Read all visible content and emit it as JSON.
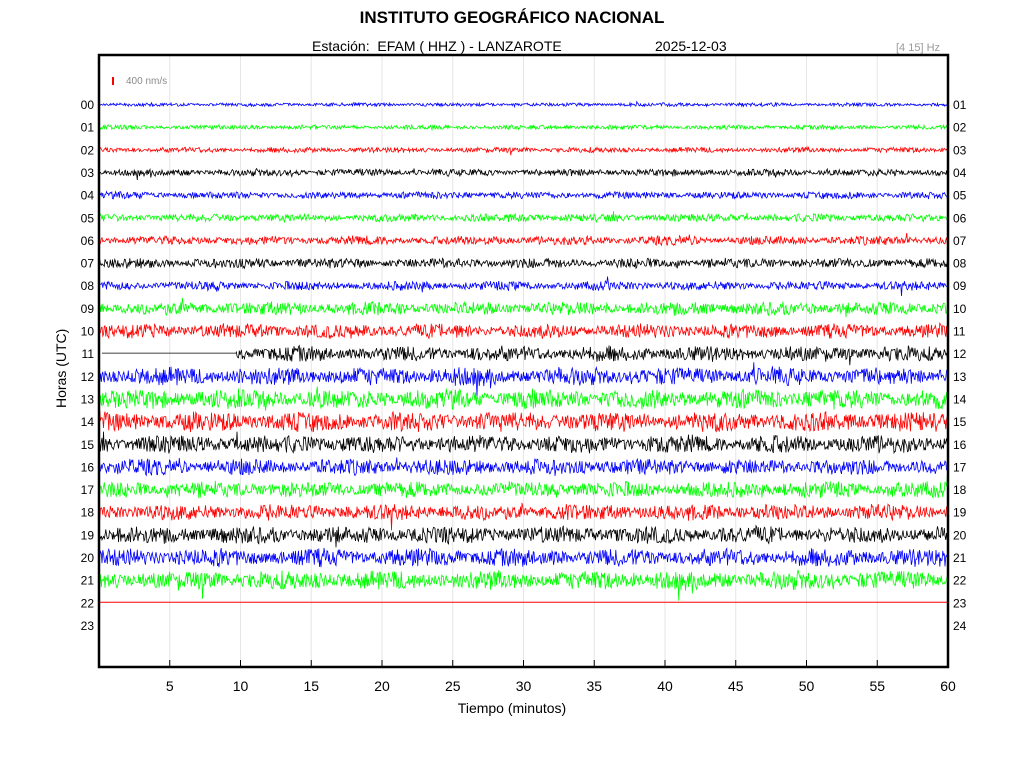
{
  "header": {
    "title": "INSTITUTO GEOGRÁFICO NACIONAL",
    "subtitle": "Estación:  EFAM ( HHZ ) - LANZAROTE",
    "date": "2025-12-03",
    "filter": "[4 15] Hz"
  },
  "scale_bar": {
    "label": "400 nm/s",
    "color": "#ff0000"
  },
  "chart_data": {
    "type": "seismic helicorder",
    "xlabel": "Tiempo (minutos)",
    "ylabel": "Horas (UTC)",
    "xlim": [
      0,
      60
    ],
    "xticks": [
      5,
      10,
      15,
      20,
      25,
      30,
      35,
      40,
      45,
      50,
      55,
      60
    ],
    "left_hour_labels": [
      "00",
      "01",
      "02",
      "03",
      "04",
      "05",
      "06",
      "07",
      "08",
      "09",
      "10",
      "11",
      "12",
      "13",
      "14",
      "15",
      "16",
      "17",
      "18",
      "19",
      "20",
      "21",
      "22",
      "23"
    ],
    "right_hour_labels": [
      "01",
      "02",
      "03",
      "04",
      "05",
      "06",
      "07",
      "08",
      "09",
      "10",
      "11",
      "12",
      "13",
      "14",
      "15",
      "16",
      "17",
      "18",
      "19",
      "20",
      "21",
      "22",
      "23",
      "24"
    ],
    "trace_colors": [
      "#0000ff",
      "#00ff00",
      "#ff0000",
      "#000000"
    ],
    "traces": [
      {
        "hour": "00",
        "color": "#0000ff",
        "amplitude": 0.2
      },
      {
        "hour": "01",
        "color": "#00ff00",
        "amplitude": 0.25
      },
      {
        "hour": "02",
        "color": "#ff0000",
        "amplitude": 0.3
      },
      {
        "hour": "03",
        "color": "#000000",
        "amplitude": 0.4
      },
      {
        "hour": "04",
        "color": "#0000ff",
        "amplitude": 0.4
      },
      {
        "hour": "05",
        "color": "#00ff00",
        "amplitude": 0.45
      },
      {
        "hour": "06",
        "color": "#ff0000",
        "amplitude": 0.5
      },
      {
        "hour": "07",
        "color": "#000000",
        "amplitude": 0.55
      },
      {
        "hour": "08",
        "color": "#0000ff",
        "amplitude": 0.5
      },
      {
        "hour": "09",
        "color": "#00ff00",
        "amplitude": 0.75
      },
      {
        "hour": "10",
        "color": "#ff0000",
        "amplitude": 0.8
      },
      {
        "hour": "11",
        "color": "#000000",
        "amplitude": 0.85,
        "gap_until_minute": 9.7
      },
      {
        "hour": "12",
        "color": "#0000ff",
        "amplitude": 1.0
      },
      {
        "hour": "13",
        "color": "#00ff00",
        "amplitude": 1.1
      },
      {
        "hour": "14",
        "color": "#ff0000",
        "amplitude": 1.1
      },
      {
        "hour": "15",
        "color": "#000000",
        "amplitude": 1.0
      },
      {
        "hour": "16",
        "color": "#0000ff",
        "amplitude": 0.9
      },
      {
        "hour": "17",
        "color": "#00ff00",
        "amplitude": 0.9
      },
      {
        "hour": "18",
        "color": "#ff0000",
        "amplitude": 0.9
      },
      {
        "hour": "19",
        "color": "#000000",
        "amplitude": 0.95
      },
      {
        "hour": "20",
        "color": "#0000ff",
        "amplitude": 1.0
      },
      {
        "hour": "21",
        "color": "#00ff00",
        "amplitude": 1.05
      },
      {
        "hour": "22",
        "color": "#ff0000",
        "amplitude": 0.0,
        "flat": true
      }
    ]
  }
}
